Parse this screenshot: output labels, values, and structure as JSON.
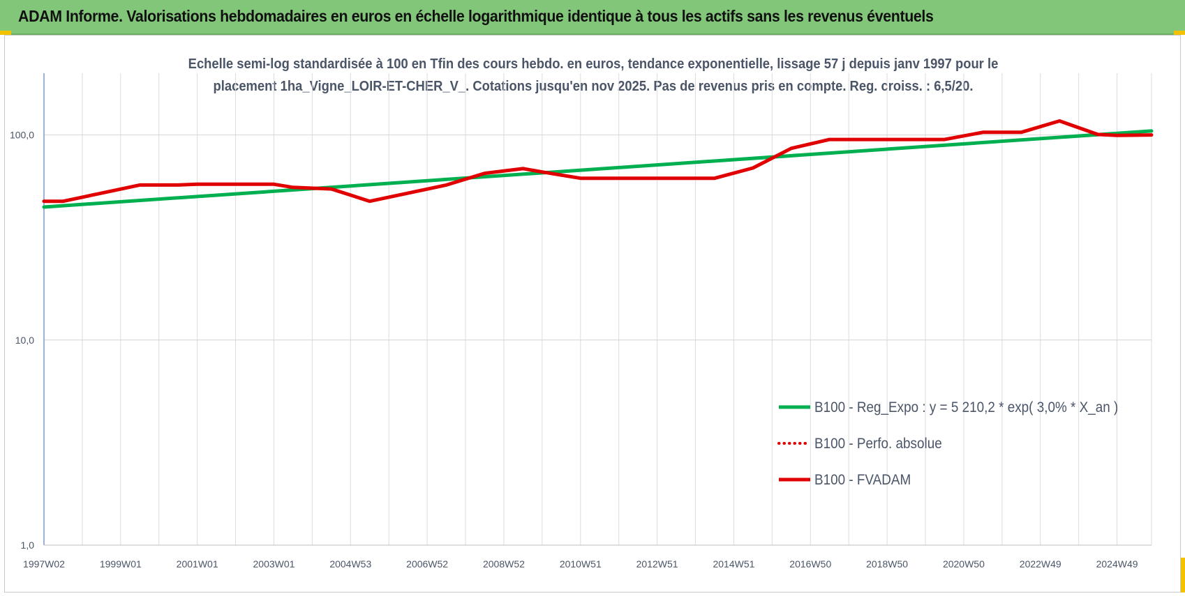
{
  "banner": {
    "title": "ADAM Informe. Valorisations hebdomadaires en euros en échelle logarithmique identique à tous les actifs sans les revenus éventuels",
    "color": "#82c67a"
  },
  "chart_data": {
    "type": "line",
    "title_lines": [
      "Echelle semi-log standardisée à 100 en Tfin des cours hebdo. en euros, tendance exponentielle, lissage 57 j depuis janv 1997 pour le",
      "placement 1ha_Vigne_LOIR-ET-CHER_V_. Cotations jusqu'en nov 2025.  Pas de revenus pris en compte. Reg. croiss. : 6,5/20."
    ],
    "y_scale": "log",
    "ylim": [
      1,
      200
    ],
    "xlim": [
      1997.0,
      2025.9
    ],
    "y_ticks": [
      {
        "value": 1,
        "label": "1,0"
      },
      {
        "value": 10,
        "label": "10,0"
      },
      {
        "value": 100,
        "label": "100,0"
      }
    ],
    "x_ticks": [
      {
        "value": 1997.0,
        "label": "1997W02"
      },
      {
        "value": 1999.0,
        "label": "1999W01"
      },
      {
        "value": 2001.0,
        "label": "2001W01"
      },
      {
        "value": 2003.0,
        "label": "2003W01"
      },
      {
        "value": 2005.0,
        "label": "2004W53"
      },
      {
        "value": 2007.0,
        "label": "2006W52"
      },
      {
        "value": 2009.0,
        "label": "2008W52"
      },
      {
        "value": 2011.0,
        "label": "2010W51"
      },
      {
        "value": 2013.0,
        "label": "2012W51"
      },
      {
        "value": 2015.0,
        "label": "2014W51"
      },
      {
        "value": 2017.0,
        "label": "2016W50"
      },
      {
        "value": 2019.0,
        "label": "2018W50"
      },
      {
        "value": 2021.0,
        "label": "2020W50"
      },
      {
        "value": 2023.0,
        "label": "2022W49"
      },
      {
        "value": 2025.0,
        "label": "2024W49"
      }
    ],
    "grid": true,
    "legend_position": "bottom-right",
    "series": [
      {
        "name": "B100 - Reg_Expo : y = 5 210,2 * exp( 3,0% *  X_an )",
        "color": "#00b050",
        "style": "solid",
        "x": [
          1997.0,
          2025.9
        ],
        "y": [
          44.5,
          104.5
        ]
      },
      {
        "name": "B100 - Perfo. absolue",
        "color": "#e00000",
        "style": "dotted",
        "x": [],
        "y": []
      },
      {
        "name": "B100 - FVADAM",
        "color": "#e00000",
        "style": "solid",
        "x": [
          1997.0,
          1997.5,
          1998.5,
          1999.5,
          2000.5,
          2001.0,
          2002.0,
          2003.0,
          2003.5,
          2004.5,
          2005.5,
          2006.5,
          2007.5,
          2008.5,
          2009.5,
          2010.0,
          2011.0,
          2012.0,
          2013.0,
          2014.5,
          2015.5,
          2016.5,
          2017.5,
          2018.5,
          2019.5,
          2020.5,
          2021.5,
          2022.5,
          2023.5,
          2024.5,
          2025.0,
          2025.9
        ],
        "y": [
          47.5,
          47.5,
          52,
          57,
          57,
          57.5,
          57.5,
          57.5,
          55.5,
          54.5,
          47.5,
          52,
          57,
          65,
          68.5,
          66,
          61.5,
          61.5,
          61.5,
          61.5,
          69,
          86,
          95,
          95,
          95,
          95,
          103,
          103,
          117,
          100.5,
          99.5,
          100
        ]
      }
    ]
  }
}
